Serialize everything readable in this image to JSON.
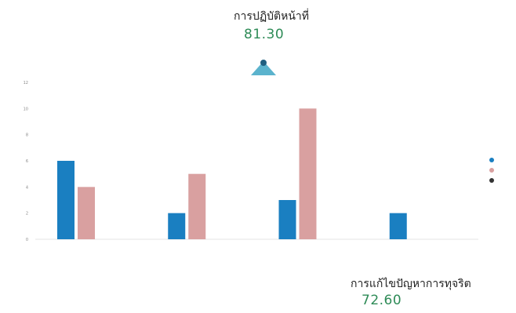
{
  "scores": {
    "top": {
      "title": "การปฏิบัติหน้าที่",
      "value": "81.30"
    },
    "bottom": {
      "title": "การแก้ไขปัญหาการทุจริต",
      "value": "72.60"
    }
  },
  "colors": {
    "series_blue": "#1a7fc1",
    "series_pink": "#d9a0a0",
    "series_dark": "#333333",
    "score_green": "#2e8b57",
    "radar_fill": "#3ea6c4"
  },
  "chart_data": {
    "type": "bar",
    "categories": [
      "",
      "",
      "",
      ""
    ],
    "series": [
      {
        "name": "",
        "values": [
          6,
          2,
          3,
          2
        ]
      },
      {
        "name": "",
        "values": [
          4,
          5,
          10,
          0
        ]
      }
    ],
    "legend_series": 3,
    "title": "",
    "xlabel": "",
    "ylabel": "",
    "ylim": [
      0,
      12
    ],
    "yticks": [
      0,
      2,
      4,
      6,
      8,
      10,
      12
    ],
    "grid": false,
    "legend_position": "right"
  }
}
